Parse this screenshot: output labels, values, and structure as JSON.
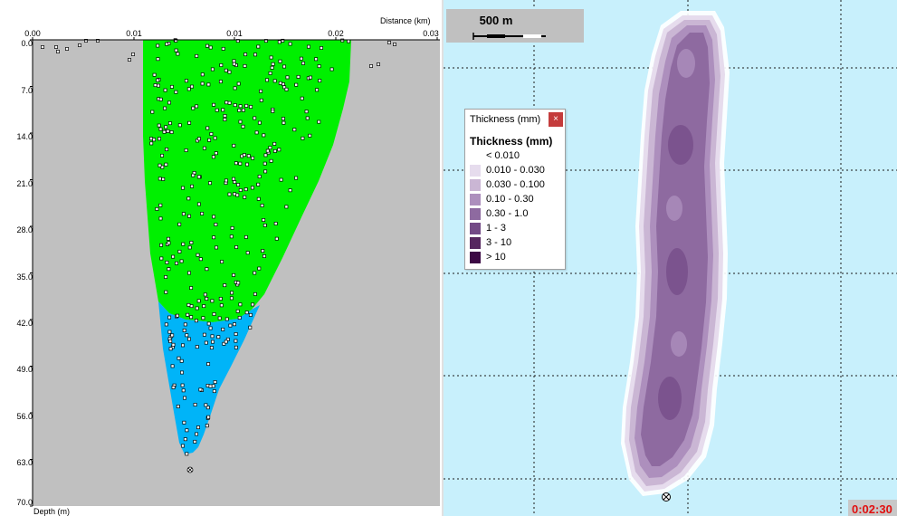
{
  "profile_view": {
    "distance_title": "Distance (km)",
    "depth_title": "Depth (m)",
    "x_ticks": [
      "0.00",
      "0.01",
      "0.01",
      "0.02",
      "0.03"
    ],
    "y_ticks": [
      "0.0",
      "7.0",
      "14.0",
      "21.0",
      "28.0",
      "35.0",
      "42.0",
      "49.0",
      "56.0",
      "63.0",
      "70.0"
    ],
    "colors": {
      "background": "#c0c0c0",
      "upper_plume": "#00f000",
      "lower_plume": "#00b4f8"
    }
  },
  "map_view": {
    "scale_label": "500 m",
    "timer": "0:02:30",
    "legend": {
      "window_title": "Thickness (mm)",
      "close_icon": "×",
      "heading": "Thickness (mm)",
      "items": [
        {
          "label": "<  0.010",
          "color": "#ffffff"
        },
        {
          "label": "0.010 - 0.030",
          "color": "#e6dced"
        },
        {
          "label": "0.030 - 0.100",
          "color": "#cab6d4"
        },
        {
          "label": "0.10   - 0.30",
          "color": "#ad8fbd"
        },
        {
          "label": "0.30   - 1.0",
          "color": "#8e6aa0"
        },
        {
          "label": "1  -  3",
          "color": "#734a86"
        },
        {
          "label": "3 - 10",
          "color": "#56275f"
        },
        {
          "label": "> 10",
          "color": "#3c0a44"
        }
      ]
    }
  }
}
